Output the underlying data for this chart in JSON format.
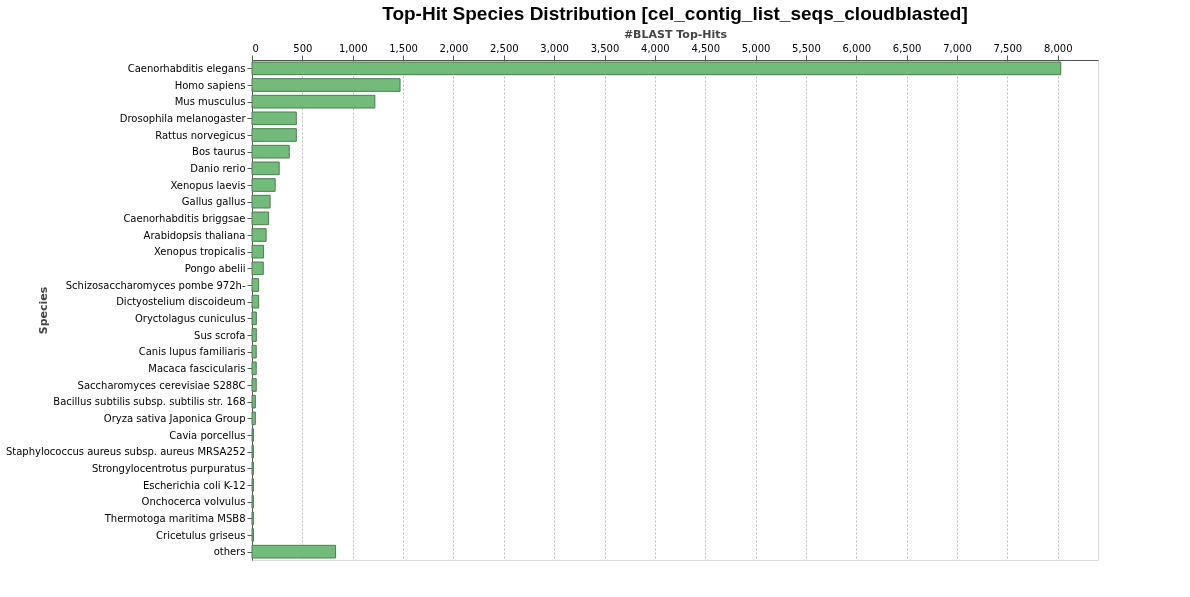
{
  "chart_data": {
    "type": "bar",
    "orientation": "horizontal",
    "title": "Top-Hit Species Distribution [cel_contig_list_seqs_cloudblasted]",
    "xlabel": "#BLAST Top-Hits",
    "ylabel": "Species",
    "categories": [
      "Caenorhabditis elegans",
      "Homo sapiens",
      "Mus musculus",
      "Drosophila melanogaster",
      "Rattus norvegicus",
      "Bos taurus",
      "Danio rerio",
      "Xenopus laevis",
      "Gallus gallus",
      "Caenorhabditis briggsae",
      "Arabidopsis thaliana",
      "Xenopus tropicalis",
      "Pongo abelii",
      "Schizosaccharomyces pombe 972h-",
      "Dictyostelium discoideum",
      "Oryctolagus cuniculus",
      "Sus scrofa",
      "Canis lupus familiaris",
      "Macaca fascicularis",
      "Saccharomyces cerevisiae S288C",
      "Bacillus subtilis subsp. subtilis str. 168",
      "Oryza sativa Japonica Group",
      "Cavia porcellus",
      "Staphylococcus aureus subsp. aureus MRSA252",
      "Strongylocentrotus purpuratus",
      "Escherichia coli K-12",
      "Onchocerca volvulus",
      "Thermotoga maritima MSB8",
      "Cricetulus griseus",
      "others"
    ],
    "values": [
      8030,
      1470,
      1220,
      440,
      440,
      370,
      270,
      230,
      180,
      165,
      140,
      115,
      112,
      66,
      66,
      43,
      43,
      42,
      42,
      42,
      33,
      33,
      14,
      14,
      14,
      14,
      14,
      14,
      14,
      830
    ],
    "color": "#72bb7b",
    "xlim": [
      0,
      8400
    ],
    "xticks": [
      {
        "value": 0,
        "label": "0"
      },
      {
        "value": 500,
        "label": "500"
      },
      {
        "value": 1000,
        "label": "1,000"
      },
      {
        "value": 1500,
        "label": "1,500"
      },
      {
        "value": 2000,
        "label": "2,000"
      },
      {
        "value": 2500,
        "label": "2,500"
      },
      {
        "value": 3000,
        "label": "3,000"
      },
      {
        "value": 3500,
        "label": "3,500"
      },
      {
        "value": 4000,
        "label": "4,000"
      },
      {
        "value": 4500,
        "label": "4,500"
      },
      {
        "value": 5000,
        "label": "5,000"
      },
      {
        "value": 5500,
        "label": "5,500"
      },
      {
        "value": 6000,
        "label": "6,000"
      },
      {
        "value": 6500,
        "label": "6,500"
      },
      {
        "value": 7000,
        "label": "7,000"
      },
      {
        "value": 7500,
        "label": "7,500"
      },
      {
        "value": 8000,
        "label": "8,000"
      }
    ],
    "grid": "x"
  }
}
